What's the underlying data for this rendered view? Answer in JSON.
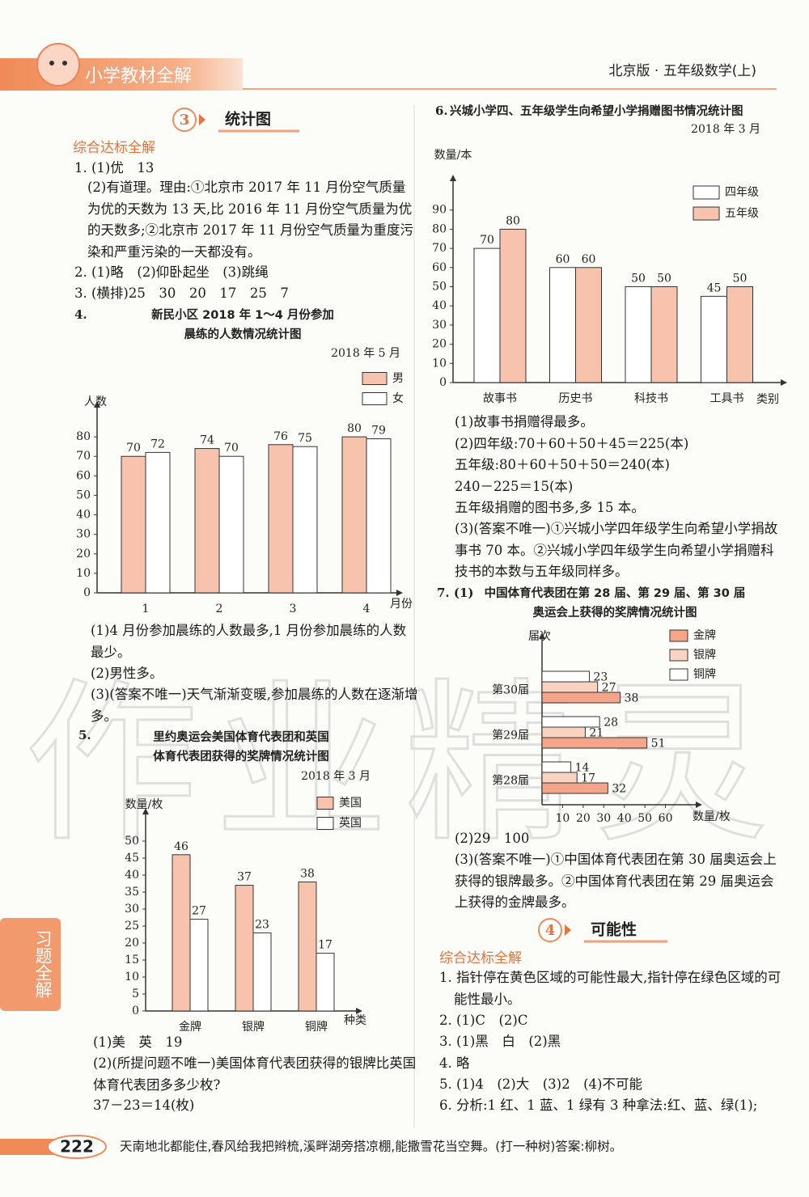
{
  "header": {
    "brand": "小学教材全解",
    "edition": "北京版 · 五年级数学(上)"
  },
  "side_tab": "习题全解",
  "watermark": "作业精灵",
  "sections": [
    {
      "number": "3",
      "title": "统计图",
      "subtitle": "综合达标全解"
    },
    {
      "number": "4",
      "title": "可能性",
      "subtitle": "综合达标全解"
    }
  ],
  "answers_left": [
    "1. (1)优　13",
    "(2)有道理。理由:①北京市 2017 年 11 月份空气质量为优的天数为 13 天,比 2016 年 11 月份空气质量为优的天数多;②北京市 2017 年 11 月份空气质量为重度污染和严重污染的一天都没有。",
    "2. (1)略　(2)仰卧起坐　(3)跳绳",
    "3. (横排)25　30　20　17　25　7",
    "(1)4 月份参加晨练的人数最多,1 月份参加晨练的人数最少。",
    "(2)男性多。",
    "(3)(答案不唯一)天气渐渐变暖,参加晨练的人数在逐渐增多。",
    "(1)美　英　19",
    "(2)(所提问题不唯一)美国体育代表团获得的银牌比英国体育代表团多多少枚?",
    "37－23＝14(枚)"
  ],
  "answers_right": [
    "(1)故事书捐赠得最多。",
    "(2)四年级:70＋60＋50＋45＝225(本)",
    "五年级:80＋60＋50＋50＝240(本)",
    "240－225＝15(本)",
    "五年级捐赠的图书多,多 15 本。",
    "(3)(答案不唯一)①兴城小学四年级学生向希望小学捐故事书 70 本。②兴城小学四年级学生向希望小学捐赠科技书的本数与五年级同样多。",
    "(2)29　100",
    "(3)(答案不唯一)①中国体育代表团在第 30 届奥运会上获得的银牌最多。②中国体育代表团在第 29 届奥运会上获得的金牌最多。",
    "1. 指针停在黄色区域的可能性最大,指针停在绿色区域的可能性最小。",
    "2. (1)C　(2)C",
    "3. (1)黑　白　(2)黑",
    "4. 略",
    "5. (1)4　(2)大　(3)2　(4)不可能",
    "6. 分析:1 红、1 蓝、1 绿有 3 种拿法:红、蓝、绿(1);"
  ],
  "chart_data": [
    {
      "type": "bar",
      "label": "4.",
      "title": [
        "新民小区 2018 年 1～4 月份参加",
        "晨练的人数情况统计图"
      ],
      "date": "2018 年 5 月",
      "y_label": "人数",
      "x_label": "月份",
      "categories": [
        "1",
        "2",
        "3",
        "4"
      ],
      "series": [
        {
          "name": "男",
          "color": "#f7c3ad",
          "values": [
            70,
            74,
            76,
            80
          ]
        },
        {
          "name": "女",
          "color": "#ffffff",
          "values": [
            72,
            70,
            75,
            79
          ]
        }
      ],
      "ylim": [
        0,
        90
      ],
      "yticks": [
        0,
        10,
        20,
        30,
        40,
        50,
        60,
        70,
        80
      ],
      "legend": "upper right"
    },
    {
      "type": "bar",
      "label": "5.",
      "title": [
        "里约奥运会美国体育代表团和英国",
        "体育代表团获得的奖牌情况统计图"
      ],
      "date": "2018 年 3 月",
      "y_label": "数量/枚",
      "x_label": "种类",
      "categories": [
        "金牌",
        "银牌",
        "铜牌"
      ],
      "series": [
        {
          "name": "美国",
          "color": "#f7c3ad",
          "values": [
            46,
            37,
            38
          ]
        },
        {
          "name": "英国",
          "color": "#ffffff",
          "values": [
            27,
            23,
            17
          ]
        }
      ],
      "ylim": [
        0,
        55
      ],
      "yticks": [
        0,
        5,
        10,
        15,
        20,
        25,
        30,
        35,
        40,
        45,
        50
      ],
      "legend": "upper right"
    },
    {
      "type": "bar",
      "label": "6.",
      "title": [
        "兴城小学四、五年级学生向希望小学捐赠图书情况统计图"
      ],
      "date": "2018 年 3 月",
      "y_label": "数量/本",
      "x_label": "类别",
      "categories": [
        "故事书",
        "历史书",
        "科技书",
        "工具书"
      ],
      "series": [
        {
          "name": "四年级",
          "color": "#ffffff",
          "values": [
            70,
            60,
            50,
            45
          ]
        },
        {
          "name": "五年级",
          "color": "#f7c3ad",
          "values": [
            80,
            60,
            50,
            50
          ]
        }
      ],
      "ylim": [
        0,
        100
      ],
      "yticks": [
        0,
        10,
        20,
        30,
        40,
        50,
        60,
        70,
        80,
        90
      ],
      "legend": "upper right"
    },
    {
      "type": "hbar",
      "label": "7. (1)",
      "title": [
        "中国体育代表团在第 28 届、第 29 届、第 30 届",
        "奥运会上获得的奖牌情况统计图"
      ],
      "y_label": "届次",
      "x_label": "数量/枚",
      "categories": [
        "第30届",
        "第29届",
        "第28届"
      ],
      "series": [
        {
          "name": "金牌",
          "color": "#f5a68a",
          "values": [
            38,
            51,
            32
          ]
        },
        {
          "name": "银牌",
          "color": "#fad3c3",
          "values": [
            27,
            21,
            17
          ]
        },
        {
          "name": "铜牌",
          "color": "#ffffff",
          "values": [
            23,
            28,
            14
          ]
        }
      ],
      "xlim": [
        0,
        70
      ],
      "xticks": [
        10,
        20,
        30,
        40,
        50,
        60
      ],
      "legend": "upper right"
    }
  ],
  "footer": {
    "page": "222",
    "riddle": "天南地北都能住,春风给我把辫梳,溪畔湖旁搭凉棚,能撒雪花当空舞。(打一种树)答案:柳树。"
  }
}
